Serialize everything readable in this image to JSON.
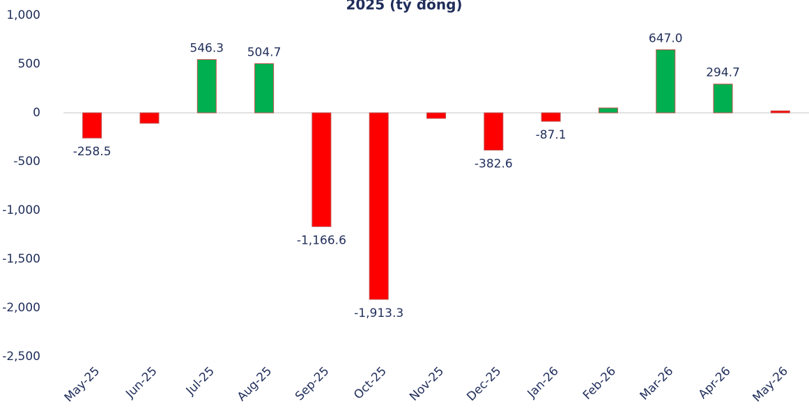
{
  "chart_data": {
    "type": "bar",
    "title": "2025 (tỷ đồng)",
    "categories": [
      "May-25",
      "Jun-25",
      "Jul-25",
      "Aug-25",
      "Sep-25",
      "Oct-25",
      "Nov-25",
      "Dec-25",
      "Jan-26",
      "Feb-26",
      "Mar-26",
      "Apr-26",
      "May-26"
    ],
    "values": [
      -258.5,
      -107,
      546.3,
      504.7,
      -1166.6,
      -1913.3,
      -57,
      -382.6,
      -87.1,
      50,
      647.0,
      294.7,
      20
    ],
    "value_labels": [
      "-258.5",
      null,
      "546.3",
      "504.7",
      "-1,166.6",
      "-1,913.3",
      null,
      "-382.6",
      "-87.1",
      null,
      "647.0",
      "294.7",
      null
    ],
    "colors": [
      "#ff0000",
      "#ff0000",
      "#00b050",
      "#00b050",
      "#ff0000",
      "#ff0000",
      "#ff0000",
      "#ff0000",
      "#ff0000",
      "#00b050",
      "#00b050",
      "#00b050",
      "#ff0000"
    ],
    "ylim": [
      -2500,
      1000
    ],
    "yticks": [
      {
        "value": 1000,
        "label": "1,000"
      },
      500,
      0,
      -500,
      {
        "value": -1000,
        "label": "-1,000"
      },
      {
        "value": -1500,
        "label": "-1,500"
      },
      {
        "value": -2000,
        "label": "-2,000"
      },
      {
        "value": -2500,
        "label": "-2,500"
      }
    ],
    "grid": false
  }
}
